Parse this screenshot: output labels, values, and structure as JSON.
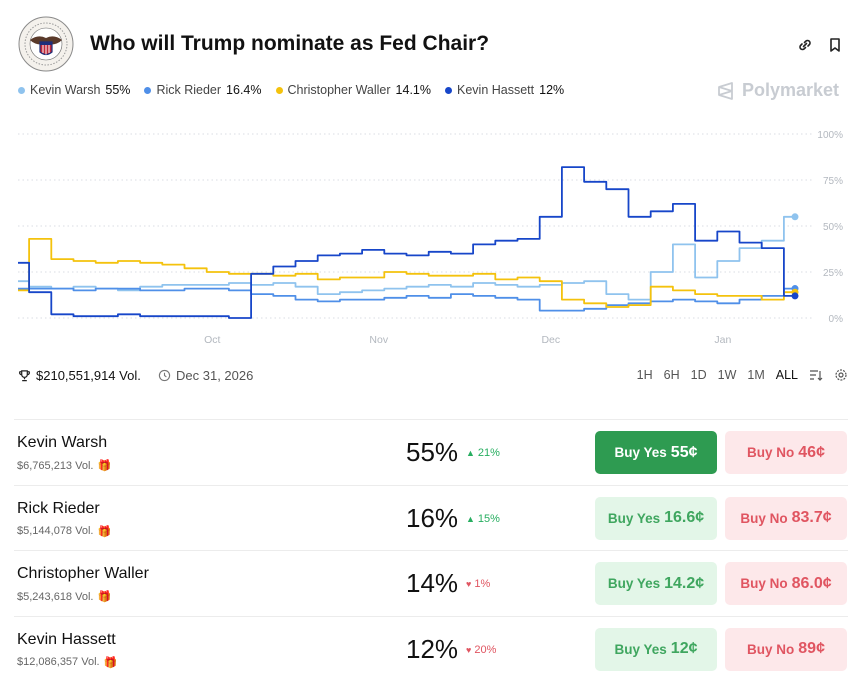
{
  "market": {
    "title": "Who will Trump nominate as Fed Chair?",
    "brand": "Polymarket",
    "volume": "$210,551,914 Vol.",
    "end_date": "Dec 31, 2026"
  },
  "legend": [
    {
      "name": "Kevin Warsh",
      "pct": "55%",
      "color": "#8fc3ee"
    },
    {
      "name": "Rick Rieder",
      "pct": "16.4%",
      "color": "#4f8fe8"
    },
    {
      "name": "Christopher Waller",
      "pct": "14.1%",
      "color": "#f4c20d"
    },
    {
      "name": "Kevin Hassett",
      "pct": "12%",
      "color": "#1746c9"
    }
  ],
  "ranges": [
    "1H",
    "6H",
    "1D",
    "1W",
    "1M",
    "ALL"
  ],
  "active_range": "ALL",
  "chart_data": {
    "type": "line",
    "x": [
      0,
      4,
      8,
      12,
      16,
      20,
      24,
      28,
      32,
      36,
      40,
      44,
      48,
      52,
      56,
      60,
      64,
      68,
      72,
      76,
      80,
      84,
      88,
      92,
      96,
      100,
      104,
      108,
      112,
      116,
      120,
      124,
      128,
      132,
      136,
      140
    ],
    "x_ticks": [
      {
        "label": "Oct",
        "x": 35
      },
      {
        "label": "Nov",
        "x": 65
      },
      {
        "label": "Dec",
        "x": 96
      },
      {
        "label": "Jan",
        "x": 127
      }
    ],
    "ylim": [
      0,
      100
    ],
    "y_ticks": [
      "0%",
      "25%",
      "50%",
      "75%",
      "100%"
    ],
    "grid": true,
    "series": [
      {
        "name": "Kevin Warsh",
        "color": "#8fc3ee",
        "values": [
          20,
          17,
          16,
          17,
          16,
          15,
          17,
          18,
          18,
          18,
          19,
          18,
          19,
          17,
          13,
          14,
          15,
          16,
          17,
          18,
          17,
          19,
          18,
          17,
          18,
          19,
          20,
          13,
          10,
          25,
          40,
          22,
          31,
          38,
          42,
          55
        ]
      },
      {
        "name": "Rick Rieder",
        "color": "#4f8fe8",
        "values": [
          16,
          16,
          16,
          15,
          16,
          16,
          15,
          15,
          16,
          16,
          15,
          13,
          12,
          10,
          9,
          10,
          10,
          11,
          12,
          11,
          13,
          12,
          11,
          10,
          4,
          4,
          5,
          7,
          8,
          9,
          10,
          9,
          8,
          10,
          12,
          16
        ]
      },
      {
        "name": "Christopher Waller",
        "color": "#f4c20d",
        "values": [
          15,
          43,
          32,
          31,
          30,
          31,
          30,
          29,
          27,
          25,
          24,
          24,
          23,
          24,
          21,
          22,
          22,
          25,
          24,
          23,
          23,
          24,
          21,
          22,
          20,
          10,
          8,
          6,
          7,
          17,
          15,
          13,
          12,
          12,
          10,
          14
        ]
      },
      {
        "name": "Kevin Hassett",
        "color": "#1746c9",
        "values": [
          30,
          14,
          2,
          1,
          1,
          2,
          1,
          1,
          1,
          1,
          0,
          24,
          28,
          31,
          34,
          35,
          37,
          35,
          34,
          36,
          35,
          40,
          42,
          43,
          55,
          82,
          74,
          70,
          55,
          58,
          62,
          42,
          47,
          41,
          38,
          12
        ]
      }
    ]
  },
  "outcomes": [
    {
      "name": "Kevin Warsh",
      "vol": "$6,765,213 Vol.",
      "prob": "55%",
      "change": "21%",
      "dir": "up",
      "dir_icon": "▲",
      "yes_label": "Buy Yes",
      "yes_price": "55¢",
      "no_label": "Buy No",
      "no_price": "46¢"
    },
    {
      "name": "Rick Rieder",
      "vol": "$5,144,078 Vol.",
      "prob": "16%",
      "change": "15%",
      "dir": "up",
      "dir_icon": "▲",
      "yes_label": "Buy Yes",
      "yes_price": "16.6¢",
      "no_label": "Buy No",
      "no_price": "83.7¢"
    },
    {
      "name": "Christopher Waller",
      "vol": "$5,243,618 Vol.",
      "prob": "14%",
      "change": "1%",
      "dir": "down",
      "dir_icon": "♥",
      "yes_label": "Buy Yes",
      "yes_price": "14.2¢",
      "no_label": "Buy No",
      "no_price": "86.0¢"
    },
    {
      "name": "Kevin Hassett",
      "vol": "$12,086,357 Vol.",
      "prob": "12%",
      "change": "20%",
      "dir": "down",
      "dir_icon": "♥",
      "yes_label": "Buy Yes",
      "yes_price": "12¢",
      "no_label": "Buy No",
      "no_price": "89¢"
    }
  ]
}
